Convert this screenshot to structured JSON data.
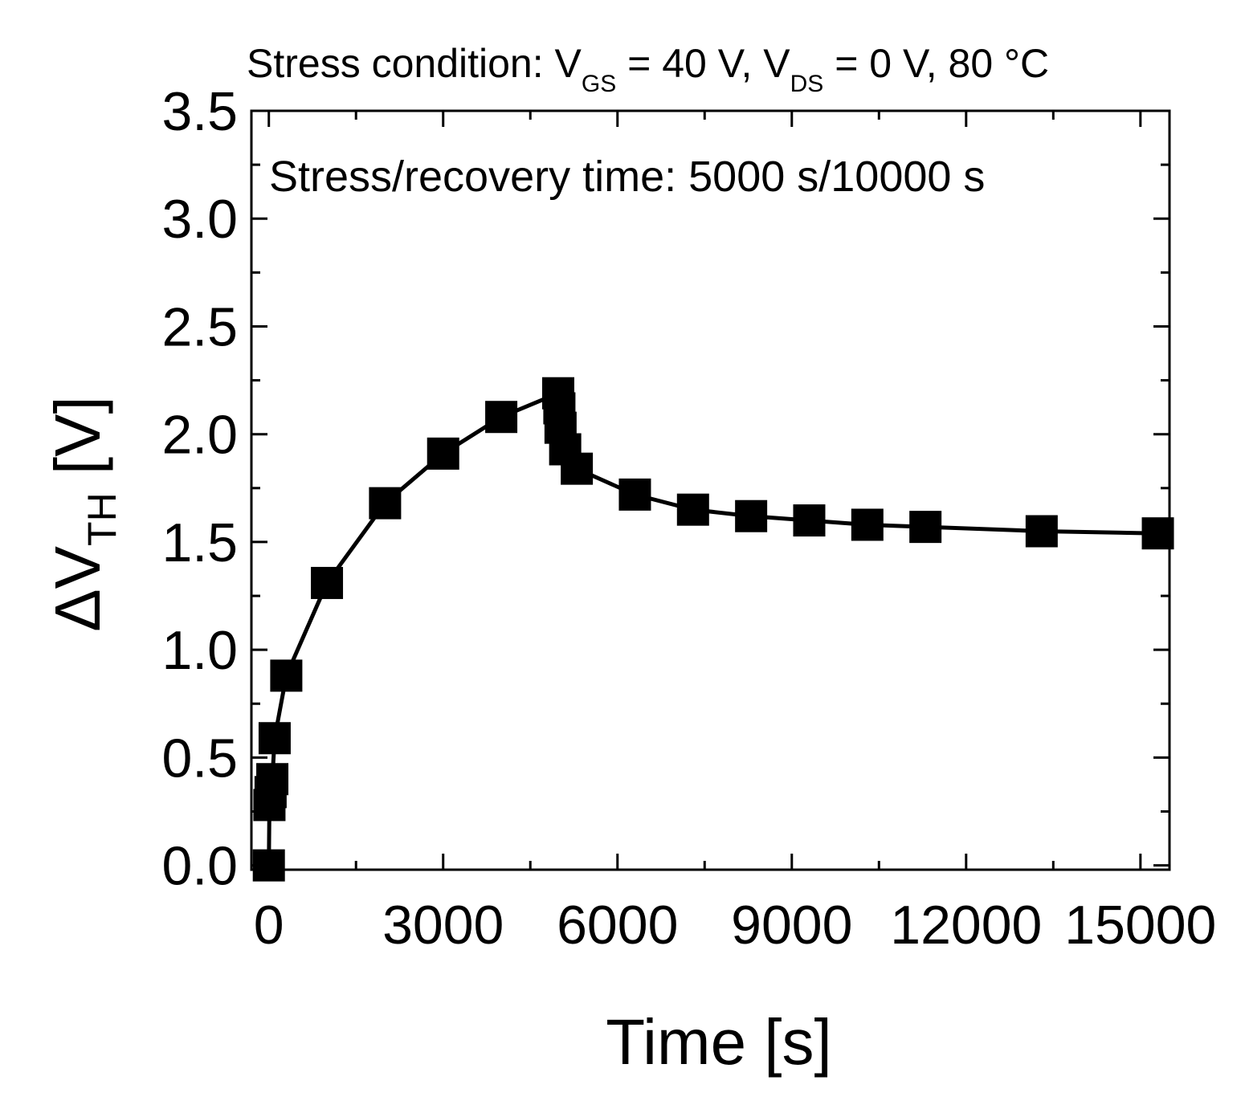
{
  "chart_data": {
    "type": "line",
    "title_parts": {
      "prefix": "Stress condition: V",
      "sub1": "GS",
      "mid": " = 40 V, V",
      "sub2": "DS",
      "suffix": " = 0 V, 80 °C"
    },
    "annotation": "Stress/recovery time: 5000 s/10000 s",
    "xlabel": "Time [s]",
    "ylabel_parts": {
      "prefix": "ΔV",
      "sub": "TH",
      "suffix": " [V]"
    },
    "xlim": [
      -300,
      15500
    ],
    "ylim": [
      -0.02,
      3.5
    ],
    "xticks": [
      0,
      3000,
      6000,
      9000,
      12000,
      15000
    ],
    "xtick_labels": [
      "0",
      "3000",
      "6000",
      "9000",
      "12000",
      "15000"
    ],
    "yticks": [
      0.0,
      0.5,
      1.0,
      1.5,
      2.0,
      2.5,
      3.0,
      3.5
    ],
    "ytick_labels": [
      "0.0",
      "0.5",
      "1.0",
      "1.5",
      "2.0",
      "2.5",
      "3.0",
      "3.5"
    ],
    "series": [
      {
        "name": "ΔVTH",
        "color": "#000000",
        "marker": "square",
        "x": [
          0,
          10,
          30,
          60,
          100,
          300,
          1000,
          2000,
          3000,
          4000,
          4980,
          5000,
          5020,
          5100,
          5300,
          6300,
          7300,
          8300,
          9300,
          10300,
          11300,
          13300,
          15300
        ],
        "y": [
          0.0,
          0.28,
          0.34,
          0.4,
          0.59,
          0.88,
          1.31,
          1.68,
          1.91,
          2.08,
          2.19,
          2.12,
          2.03,
          1.93,
          1.84,
          1.72,
          1.65,
          1.62,
          1.6,
          1.58,
          1.57,
          1.55,
          1.54
        ]
      }
    ]
  }
}
